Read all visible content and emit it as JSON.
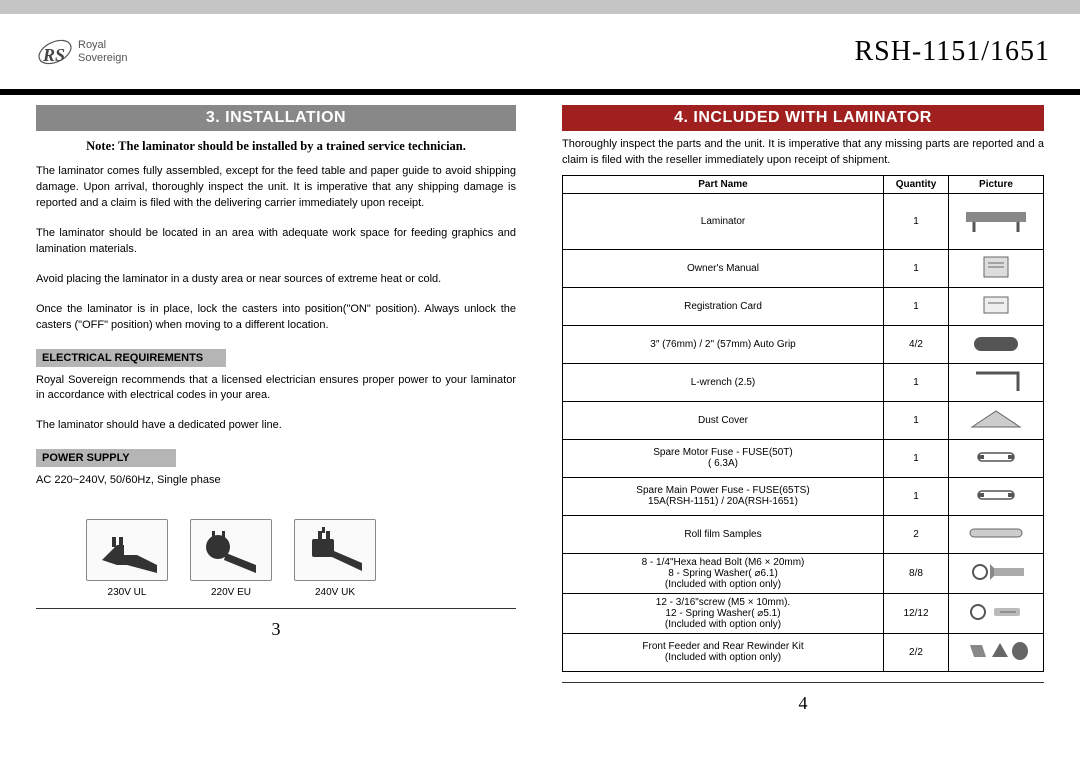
{
  "header": {
    "brand_top": "Royal",
    "brand_bottom": "Sovereign",
    "model": "RSH-1151/1651"
  },
  "left": {
    "title": "3. INSTALLATION",
    "note": "Note: The laminator should be installed by a trained service technician.",
    "para1": "The laminator comes fully assembled, except for the feed table and paper guide to avoid shipping damage. Upon arrival, thoroughly inspect the unit. It is imperative that any shipping damage is reported and a claim is filed with the delivering carrier immediately upon receipt.",
    "para2": "The laminator should be located in an area with adequate work space for feeding graphics and lamination materials.",
    "para3": "Avoid placing the laminator in a dusty area or near sources of extreme heat or cold.",
    "para4": "Once the laminator is in place, lock the casters into position(\"ON\" position). Always unlock the casters (\"OFF\" position) when moving to a different location.",
    "elec_header": "ELECTRICAL REQUIREMENTS",
    "elec_text": "Royal Sovereign recommends that a licensed electrician ensures proper power to your laminator in accordance with electrical codes in your area.",
    "elec_text2": "The laminator should have a dedicated power line.",
    "power_header": "POWER SUPPLY",
    "power_text": "AC 220~240V, 50/60Hz, Single phase",
    "plugs": [
      "230V UL",
      "220V EU",
      "240V UK"
    ],
    "page": "3"
  },
  "right": {
    "title": "4. INCLUDED WITH LAMINATOR",
    "intro": "Thoroughly inspect the parts and the unit. It is imperative that any missing parts are reported and a claim is filed with the reseller immediately upon receipt of shipment.",
    "headers": [
      "Part Name",
      "Quantity",
      "Picture"
    ],
    "rows": [
      {
        "name": "Laminator",
        "qty": "1",
        "tall": true
      },
      {
        "name": "Owner's Manual",
        "qty": "1"
      },
      {
        "name": "Registration Card",
        "qty": "1"
      },
      {
        "name": "3″ (76mm) / 2\" (57mm) Auto Grip",
        "qty": "4/2"
      },
      {
        "name": "L-wrench (2.5)",
        "qty": "1"
      },
      {
        "name": "Dust Cover",
        "qty": "1"
      },
      {
        "name": "Spare Motor Fuse - FUSE(50T)\n( 6.3A)",
        "qty": "1"
      },
      {
        "name": "Spare Main Power Fuse - FUSE(65TS)\n15A(RSH-1151) / 20A(RSH-1651)",
        "qty": "1"
      },
      {
        "name": "Roll film Samples",
        "qty": "2"
      },
      {
        "name": "8 - 1/4\"Hexa head Bolt (M6 × 20mm)\n8 - Spring Washer( ⌀6.1)\n(Included with option only)",
        "qty": "8/8"
      },
      {
        "name": "12 - 3/16\"screw (M5 × 10mm).\n12 - Spring Washer( ⌀5.1)\n(Included with option only)",
        "qty": "12/12"
      },
      {
        "name": "Front Feeder and Rear Rewinder Kit\n(Included with option only)",
        "qty": "2/2"
      }
    ],
    "page": "4"
  }
}
